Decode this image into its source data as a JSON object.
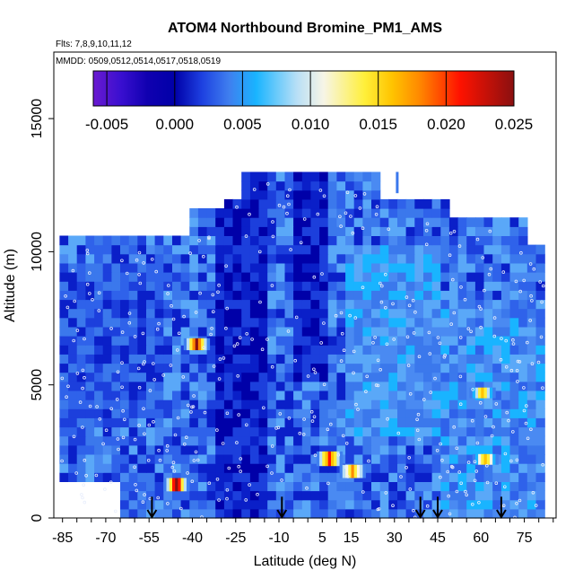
{
  "chart_data": {
    "type": "heatmap",
    "title": "ATOM4 Northbound Bromine_PM1_AMS",
    "subtitle_flights": "Flts: 7,8,9,10,11,12",
    "subtitle_dates": "MMDD: 0509,0512,0514,0517,0518,0519",
    "xlabel": "Latitude (deg N)",
    "ylabel": "Altitude (m)",
    "xlim": [
      -88,
      86
    ],
    "ylim": [
      0,
      17500
    ],
    "x_tick_labels": [
      "-85",
      "-70",
      "-55",
      "-40",
      "-25",
      "-10",
      "5",
      "15",
      "30",
      "45",
      "60",
      "75"
    ],
    "x_tick_values": [
      -85,
      -70,
      -55,
      -40,
      -25,
      -10,
      5,
      15,
      30,
      45,
      60,
      75
    ],
    "y_tick_labels": [
      "0",
      "5000",
      "10000",
      "15000"
    ],
    "y_tick_values": [
      0,
      5000,
      10000,
      15000
    ],
    "colorbar": {
      "min": -0.006,
      "max": 0.025,
      "tick_labels": [
        "-0.005",
        "0.000",
        "0.005",
        "0.010",
        "0.015",
        "0.020",
        "0.025"
      ],
      "tick_values": [
        -0.005,
        0.0,
        0.005,
        0.01,
        0.015,
        0.02,
        0.025
      ],
      "colors": [
        "#6a1ad0",
        "#0000a8",
        "#0a2fd6",
        "#3f7fef",
        "#19b4ff",
        "#f7f5e6",
        "#ffef3a",
        "#ff8a00",
        "#ff1200",
        "#8a1010"
      ]
    },
    "flight_marker_latitudes": [
      -54,
      -9,
      39,
      45,
      67
    ],
    "field_color": "#3b78ec",
    "hot_spots": [
      {
        "lat": -39,
        "alt_min": 6300,
        "alt_max": 6750,
        "value": 0.022
      },
      {
        "lat": -46,
        "alt_min": 1000,
        "alt_max": 1500,
        "value": 0.023
      },
      {
        "lat": 7,
        "alt_min": 1950,
        "alt_max": 2500,
        "value": 0.02
      },
      {
        "lat": 15,
        "alt_min": 1500,
        "alt_max": 2000,
        "value": 0.017
      },
      {
        "lat": 61,
        "alt_min": 2000,
        "alt_max": 2400,
        "value": 0.016
      },
      {
        "lat": 60,
        "alt_min": 4500,
        "alt_max": 4900,
        "value": 0.015
      }
    ]
  }
}
